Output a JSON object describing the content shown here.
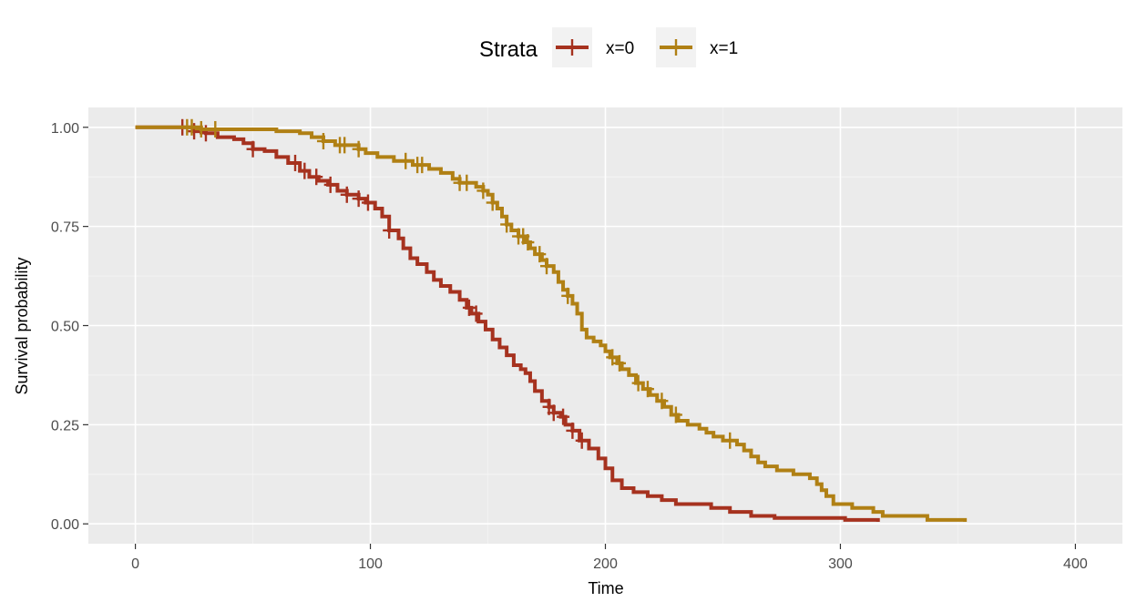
{
  "chart_data": {
    "type": "line",
    "subtype": "kaplan-meier-step",
    "xlabel": "Time",
    "ylabel": "Survival probability",
    "xlim": [
      -20,
      420
    ],
    "ylim": [
      -0.05,
      1.05
    ],
    "x_ticks": [
      0,
      100,
      200,
      300,
      400
    ],
    "x_tick_labels": [
      "0",
      "100",
      "200",
      "300",
      "400"
    ],
    "y_ticks": [
      0,
      0.25,
      0.5,
      0.75,
      1
    ],
    "y_tick_labels": [
      "0.00",
      "0.25",
      "0.50",
      "0.75",
      "1.00"
    ],
    "grid": true,
    "panel_background": "#ebebeb",
    "legend": {
      "title": "Strata",
      "position": "top",
      "entries": [
        "x=0",
        "x=1"
      ]
    },
    "series": [
      {
        "name": "x=0",
        "color": "#a6321f",
        "points": [
          [
            0,
            1.0
          ],
          [
            25,
            0.99
          ],
          [
            30,
            0.985
          ],
          [
            35,
            0.975
          ],
          [
            42,
            0.97
          ],
          [
            46,
            0.96
          ],
          [
            50,
            0.945
          ],
          [
            55,
            0.94
          ],
          [
            60,
            0.925
          ],
          [
            65,
            0.91
          ],
          [
            70,
            0.89
          ],
          [
            74,
            0.875
          ],
          [
            78,
            0.865
          ],
          [
            82,
            0.855
          ],
          [
            86,
            0.84
          ],
          [
            90,
            0.83
          ],
          [
            95,
            0.82
          ],
          [
            98,
            0.81
          ],
          [
            102,
            0.795
          ],
          [
            105,
            0.775
          ],
          [
            108,
            0.74
          ],
          [
            112,
            0.72
          ],
          [
            114,
            0.695
          ],
          [
            117,
            0.67
          ],
          [
            120,
            0.655
          ],
          [
            124,
            0.635
          ],
          [
            127,
            0.615
          ],
          [
            130,
            0.6
          ],
          [
            134,
            0.585
          ],
          [
            138,
            0.565
          ],
          [
            141,
            0.545
          ],
          [
            143,
            0.53
          ],
          [
            146,
            0.51
          ],
          [
            149,
            0.49
          ],
          [
            152,
            0.465
          ],
          [
            155,
            0.445
          ],
          [
            158,
            0.425
          ],
          [
            161,
            0.4
          ],
          [
            164,
            0.39
          ],
          [
            166,
            0.38
          ],
          [
            168,
            0.36
          ],
          [
            170,
            0.335
          ],
          [
            173,
            0.31
          ],
          [
            176,
            0.295
          ],
          [
            178,
            0.28
          ],
          [
            181,
            0.27
          ],
          [
            183,
            0.25
          ],
          [
            186,
            0.235
          ],
          [
            189,
            0.21
          ],
          [
            193,
            0.19
          ],
          [
            197,
            0.165
          ],
          [
            200,
            0.14
          ],
          [
            203,
            0.11
          ],
          [
            207,
            0.09
          ],
          [
            212,
            0.08
          ],
          [
            218,
            0.07
          ],
          [
            224,
            0.06
          ],
          [
            230,
            0.05
          ],
          [
            245,
            0.04
          ],
          [
            253,
            0.03
          ],
          [
            262,
            0.02
          ],
          [
            272,
            0.015
          ],
          [
            302,
            0.01
          ],
          [
            316,
            0.005
          ]
        ],
        "censor_times": [
          20,
          25,
          30,
          50,
          68,
          72,
          77,
          83,
          90,
          95,
          99,
          108,
          142,
          145,
          176,
          178,
          182,
          186,
          190
        ]
      },
      {
        "name": "x=1",
        "color": "#b08014",
        "points": [
          [
            0,
            1.0
          ],
          [
            28,
            0.995
          ],
          [
            60,
            0.99
          ],
          [
            70,
            0.985
          ],
          [
            75,
            0.975
          ],
          [
            80,
            0.965
          ],
          [
            85,
            0.955
          ],
          [
            95,
            0.945
          ],
          [
            98,
            0.935
          ],
          [
            103,
            0.925
          ],
          [
            110,
            0.915
          ],
          [
            118,
            0.905
          ],
          [
            125,
            0.895
          ],
          [
            130,
            0.885
          ],
          [
            135,
            0.87
          ],
          [
            138,
            0.86
          ],
          [
            145,
            0.85
          ],
          [
            148,
            0.84
          ],
          [
            150,
            0.83
          ],
          [
            152,
            0.81
          ],
          [
            154,
            0.795
          ],
          [
            156,
            0.775
          ],
          [
            158,
            0.755
          ],
          [
            160,
            0.74
          ],
          [
            163,
            0.725
          ],
          [
            166,
            0.71
          ],
          [
            168,
            0.695
          ],
          [
            170,
            0.68
          ],
          [
            173,
            0.665
          ],
          [
            175,
            0.65
          ],
          [
            178,
            0.635
          ],
          [
            180,
            0.61
          ],
          [
            182,
            0.59
          ],
          [
            184,
            0.575
          ],
          [
            186,
            0.555
          ],
          [
            188,
            0.53
          ],
          [
            190,
            0.49
          ],
          [
            192,
            0.47
          ],
          [
            195,
            0.46
          ],
          [
            198,
            0.45
          ],
          [
            200,
            0.435
          ],
          [
            202,
            0.42
          ],
          [
            205,
            0.405
          ],
          [
            207,
            0.39
          ],
          [
            210,
            0.375
          ],
          [
            213,
            0.355
          ],
          [
            216,
            0.34
          ],
          [
            219,
            0.325
          ],
          [
            222,
            0.31
          ],
          [
            225,
            0.295
          ],
          [
            228,
            0.275
          ],
          [
            231,
            0.26
          ],
          [
            235,
            0.25
          ],
          [
            240,
            0.24
          ],
          [
            243,
            0.23
          ],
          [
            246,
            0.22
          ],
          [
            250,
            0.21
          ],
          [
            256,
            0.2
          ],
          [
            259,
            0.185
          ],
          [
            262,
            0.17
          ],
          [
            265,
            0.155
          ],
          [
            268,
            0.145
          ],
          [
            273,
            0.135
          ],
          [
            280,
            0.125
          ],
          [
            287,
            0.115
          ],
          [
            290,
            0.1
          ],
          [
            292,
            0.085
          ],
          [
            294,
            0.07
          ],
          [
            297,
            0.05
          ],
          [
            305,
            0.04
          ],
          [
            314,
            0.03
          ],
          [
            318,
            0.02
          ],
          [
            337,
            0.01
          ],
          [
            353,
            0.005
          ]
        ],
        "censor_times": [
          22,
          24,
          28,
          34,
          80,
          87,
          89,
          95,
          115,
          120,
          122,
          138,
          141,
          148,
          152,
          158,
          163,
          165,
          167,
          172,
          175,
          184,
          203,
          206,
          214,
          218,
          224,
          230,
          253
        ]
      }
    ]
  }
}
